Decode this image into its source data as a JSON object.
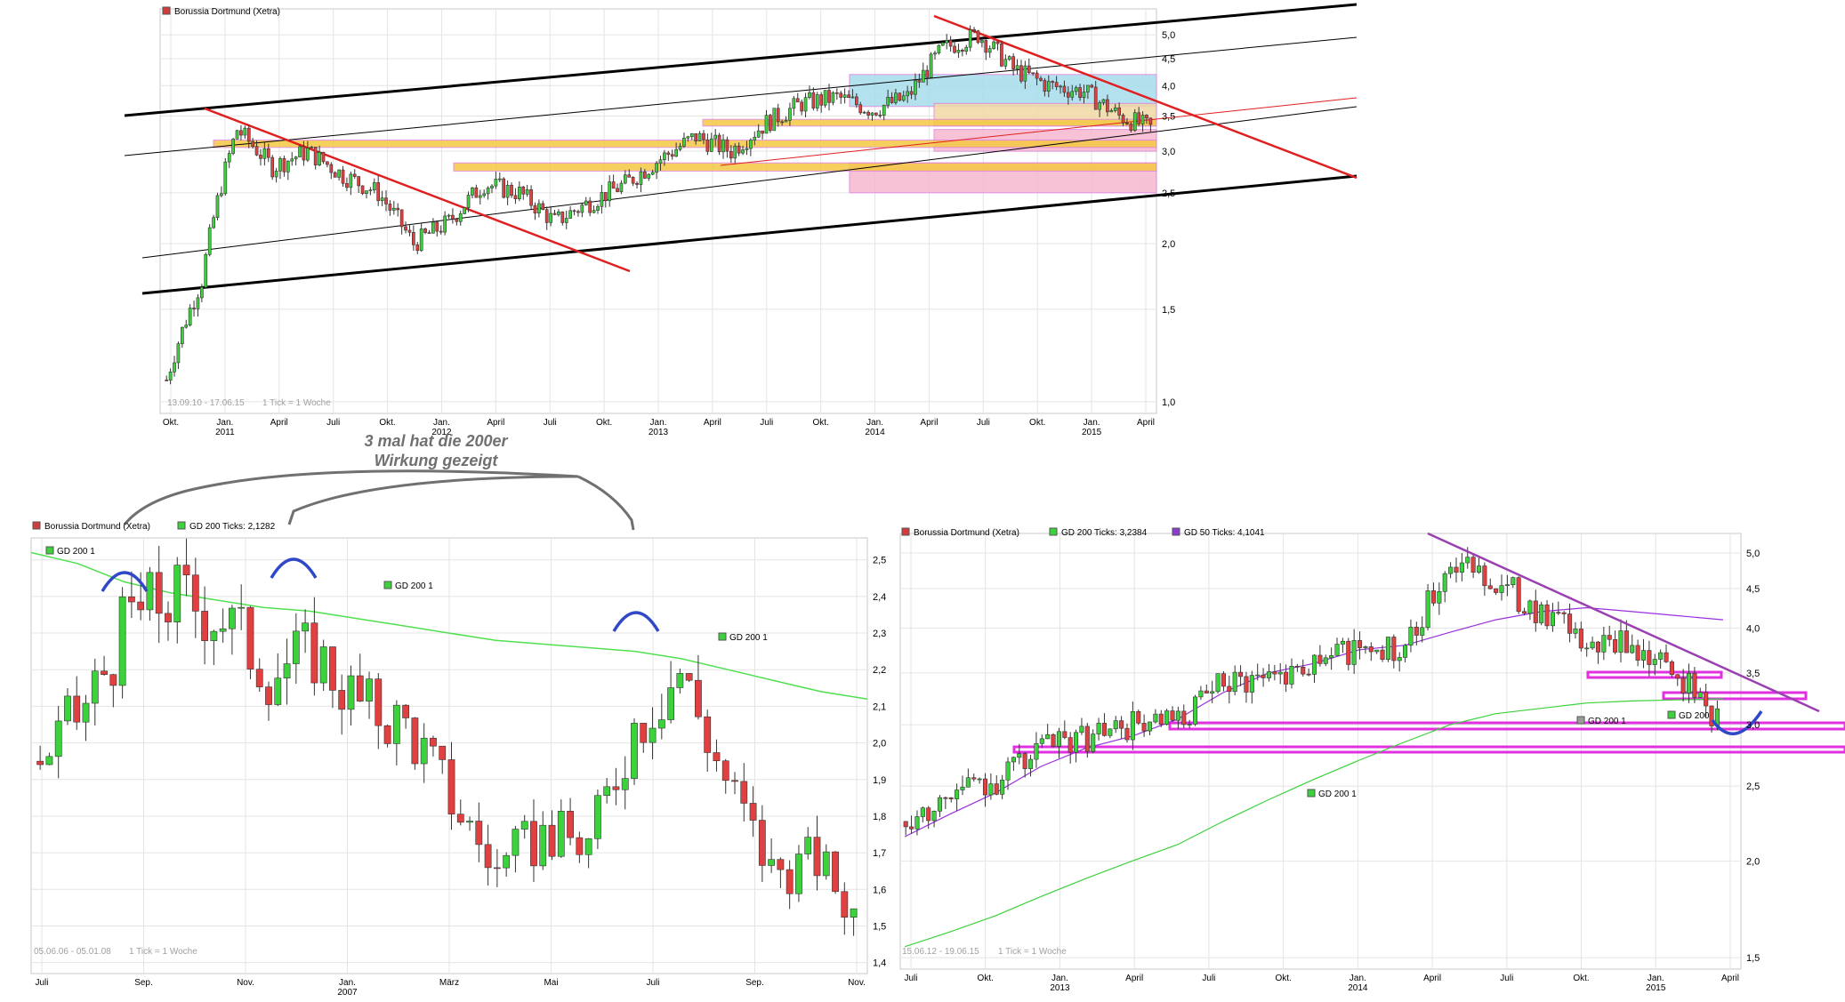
{
  "charts": [
    {
      "legend": [
        {
          "name": "Borussia Dortmund (Xetra)",
          "color": "#d23c3c"
        }
      ],
      "date_range": "13.09.10 - 17.06.15",
      "tick_info": "1 Tick = 1 Woche",
      "y_ticks": [
        "1,0",
        "1,5",
        "2,0",
        "2,5",
        "3,0",
        "3,5",
        "4,0",
        "4,5",
        "5,0"
      ],
      "x_ticks": [
        "Okt.",
        "Jan.\n2011",
        "April",
        "Juli",
        "Okt.",
        "Jan.\n2012",
        "April",
        "Juli",
        "Okt.",
        "Jan.\n2013",
        "April",
        "Juli",
        "Okt.",
        "Jan.\n2014",
        "April",
        "Juli",
        "Okt.",
        "Jan.\n2015",
        "April"
      ]
    },
    {
      "legend": [
        {
          "name": "Borussia Dortmund (Xetra)",
          "color": "#d23c3c"
        },
        {
          "name": "GD 200 Ticks: 2,1282",
          "color": "#3cd23c"
        }
      ],
      "ma_labels": [
        "GD 200 1",
        "GD 200 1",
        "GD 200 1"
      ],
      "date_range": "05.06.06 - 05.01.08",
      "tick_info": "1 Tick = 1 Woche",
      "y_ticks": [
        "1,4",
        "1,5",
        "1,6",
        "1,7",
        "1,8",
        "1,9",
        "2,0",
        "2,1",
        "2,2",
        "2,3",
        "2,4",
        "2,5"
      ],
      "x_ticks": [
        "Juli",
        "Sep.",
        "Nov.",
        "Jan.\n2007",
        "März",
        "Mai",
        "Juli",
        "Sep.",
        "Nov."
      ]
    },
    {
      "legend": [
        {
          "name": "Borussia Dortmund (Xetra)",
          "color": "#d23c3c"
        },
        {
          "name": "GD 200 Ticks: 3,2384",
          "color": "#3cd23c"
        },
        {
          "name": "GD 50 Ticks: 4,1041",
          "color": "#8c3cd2"
        }
      ],
      "ma_labels": [
        "GD 200 1",
        "GD 200 1",
        "GD 200"
      ],
      "date_range": "15.06.12 - 19.06.15",
      "tick_info": "1 Tick = 1 Woche",
      "y_ticks": [
        "1,5",
        "2,0",
        "2,5",
        "3,0",
        "3,5",
        "4,0",
        "4,5",
        "5,0"
      ],
      "x_ticks": [
        "Juli",
        "Okt.",
        "Jan.\n2013",
        "April",
        "Juli",
        "Okt.",
        "Jan.\n2014",
        "April",
        "Juli",
        "Okt.",
        "Jan.\n2015",
        "April"
      ]
    }
  ],
  "annotation": {
    "line1": "3 mal hat die 200er",
    "line2": "Wirkung gezeigt"
  },
  "chart_data": [
    {
      "type": "candlestick",
      "title": "Borussia Dortmund (Xetra)",
      "scale": "log",
      "ylim": [
        0.95,
        5.6
      ],
      "x": [
        "2010-10",
        "2010-12",
        "2011-02",
        "2011-04",
        "2011-06",
        "2011-08",
        "2011-10",
        "2011-12",
        "2012-02",
        "2012-04",
        "2012-06",
        "2012-08",
        "2012-10",
        "2012-12",
        "2013-02",
        "2013-04",
        "2013-06",
        "2013-08",
        "2013-10",
        "2013-12",
        "2014-02",
        "2014-04",
        "2014-06",
        "2014-08",
        "2014-10",
        "2014-12",
        "2015-02",
        "2015-04",
        "2015-06"
      ],
      "close": [
        1.1,
        1.7,
        3.3,
        2.8,
        3.0,
        2.7,
        2.5,
        2.0,
        2.2,
        2.6,
        2.5,
        2.2,
        2.4,
        2.6,
        2.9,
        3.2,
        3.0,
        3.4,
        3.7,
        3.8,
        3.6,
        3.8,
        4.7,
        5.0,
        4.3,
        4.0,
        3.9,
        3.5,
        3.3
      ]
    },
    {
      "type": "candlestick",
      "title": "Borussia Dortmund (Xetra)",
      "ylim": [
        1.37,
        2.56
      ],
      "x": [
        "2006-06",
        "2006-07",
        "2006-08",
        "2006-09",
        "2006-10",
        "2006-11",
        "2006-12",
        "2007-01",
        "2007-02",
        "2007-03",
        "2007-04",
        "2007-05",
        "2007-06",
        "2007-07",
        "2007-08",
        "2007-09",
        "2007-10",
        "2007-11",
        "2007-12"
      ],
      "close": [
        1.95,
        2.1,
        2.35,
        2.4,
        2.35,
        2.2,
        2.25,
        2.1,
        2.05,
        1.85,
        1.65,
        1.75,
        1.72,
        2.05,
        2.2,
        1.9,
        1.65,
        1.68,
        1.5
      ],
      "ma200": [
        2.52,
        2.49,
        2.44,
        2.41,
        2.39,
        2.37,
        2.36,
        2.34,
        2.32,
        2.3,
        2.28,
        2.27,
        2.26,
        2.25,
        2.23,
        2.2,
        2.17,
        2.14,
        2.12
      ]
    },
    {
      "type": "candlestick",
      "title": "Borussia Dortmund (Xetra)",
      "scale": "log",
      "ylim": [
        1.45,
        5.3
      ],
      "x": [
        "2012-07",
        "2012-09",
        "2012-11",
        "2013-01",
        "2013-03",
        "2013-05",
        "2013-07",
        "2013-09",
        "2013-11",
        "2014-01",
        "2014-03",
        "2014-05",
        "2014-07",
        "2014-09",
        "2014-11",
        "2015-01",
        "2015-03",
        "2015-05",
        "2015-06"
      ],
      "close": [
        2.25,
        2.45,
        2.55,
        2.8,
        2.9,
        3.0,
        3.0,
        3.4,
        3.5,
        3.6,
        3.8,
        3.7,
        4.9,
        4.6,
        4.2,
        3.8,
        3.8,
        3.5,
        3.0
      ],
      "ma200": [
        1.55,
        1.62,
        1.7,
        1.8,
        1.9,
        2.0,
        2.1,
        2.25,
        2.4,
        2.55,
        2.7,
        2.85,
        3.0,
        3.1,
        3.15,
        3.2,
        3.22,
        3.23,
        3.24
      ],
      "ma50": [
        2.15,
        2.3,
        2.45,
        2.65,
        2.8,
        2.9,
        3.05,
        3.3,
        3.5,
        3.6,
        3.75,
        3.8,
        3.95,
        4.1,
        4.2,
        4.25,
        4.2,
        4.15,
        4.1
      ]
    }
  ]
}
